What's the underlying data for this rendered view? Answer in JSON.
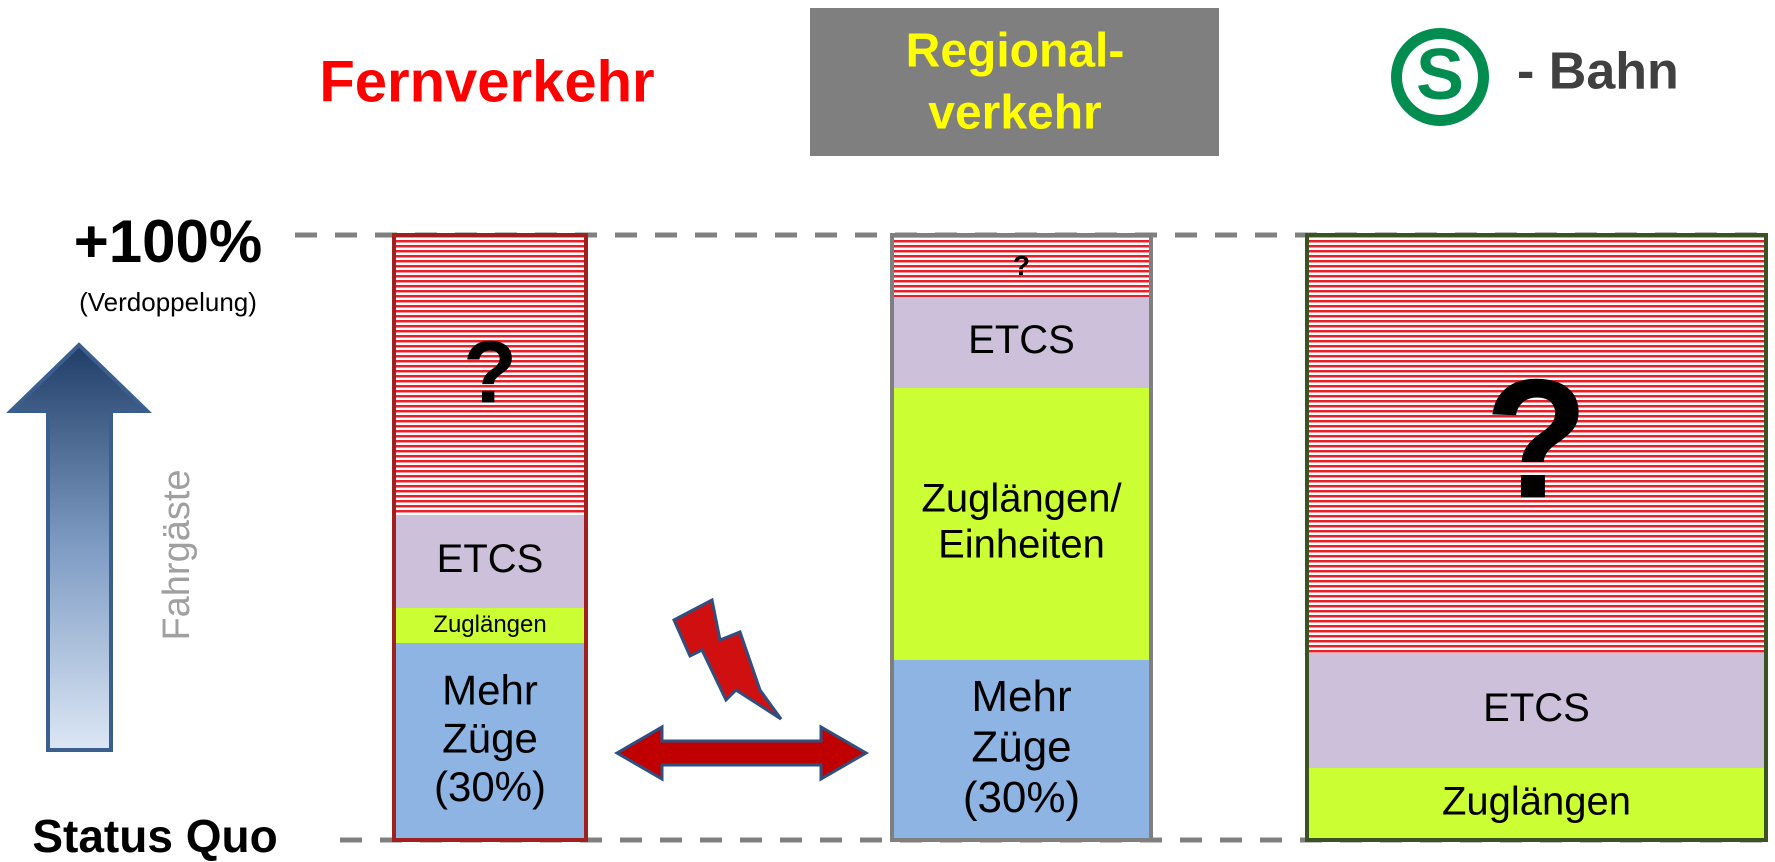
{
  "header": {
    "fernverkehr": "Fernverkehr",
    "regionalverkehr": [
      "Regional-",
      "verkehr"
    ],
    "sbahn_logo": "S",
    "sbahn": "- Bahn"
  },
  "axis": {
    "top": "+100%",
    "top_note": "(Verdoppelung)",
    "label": "Fahrgäste",
    "bottom": "Status Quo"
  },
  "columns": [
    {
      "segments": [
        {
          "label": [
            "?"
          ]
        },
        {
          "label": [
            "ETCS"
          ]
        },
        {
          "label": [
            "Zuglängen"
          ]
        },
        {
          "label": [
            "Mehr",
            "Züge",
            "(30%)"
          ]
        }
      ]
    },
    {
      "segments": [
        {
          "label": [
            "?"
          ]
        },
        {
          "label": [
            "ETCS"
          ]
        },
        {
          "label": [
            "Zuglängen/",
            "Einheiten"
          ]
        },
        {
          "label": [
            "Mehr",
            "Züge",
            "(30%)"
          ]
        }
      ]
    },
    {
      "segments": [
        {
          "label": [
            "?"
          ]
        },
        {
          "label": [
            "ETCS"
          ]
        },
        {
          "label": [
            "Zuglängen"
          ]
        }
      ]
    }
  ]
}
